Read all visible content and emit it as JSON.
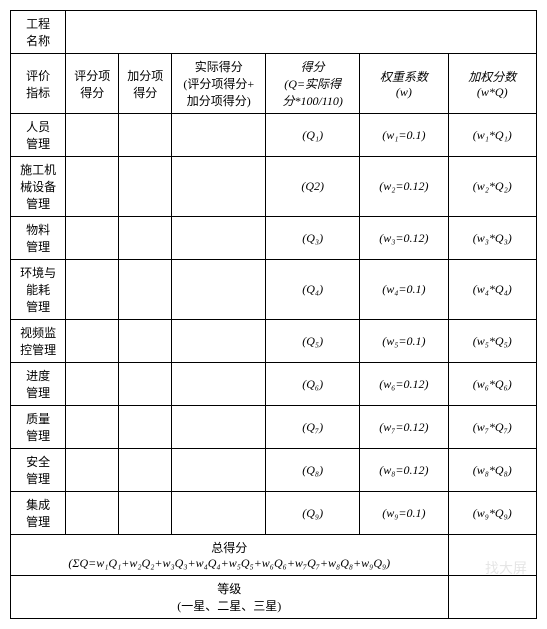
{
  "header": {
    "projectNameLabel": "工程\n名称",
    "evalIndexLabel": "评价\n指标",
    "scoreItemLabel": "评分项\n得分",
    "bonusItemLabel": "加分项\n得分",
    "actualScoreLabel": "实际得分\n(评分项得分+\n加分项得分)",
    "scoreLabel": "得分\n(Q=实际得\n分*100/110)",
    "weightLabel": "权重系数\n(w)",
    "weightedLabel": "加权分数\n(w*Q)"
  },
  "rows": [
    {
      "name": "人员\n管理",
      "q": "(Q₁)",
      "w": "(w₁=0.1)",
      "wq": "(w₁*Q₁)"
    },
    {
      "name": "施工机\n械设备\n管理",
      "q": "(Q2)",
      "w": "(w₂=0.12)",
      "wq": "(w₂*Q₂)"
    },
    {
      "name": "物料\n管理",
      "q": "(Q₃)",
      "w": "(w₃=0.12)",
      "wq": "(w₃*Q₃)"
    },
    {
      "name": "环境与\n能耗\n管理",
      "q": "(Q₄)",
      "w": "(w₄=0.1)",
      "wq": "(w₄*Q₄)"
    },
    {
      "name": "视频监\n控管理",
      "q": "(Q₅)",
      "w": "(w₅=0.1)",
      "wq": "(w₅*Q₅)"
    },
    {
      "name": "进度\n管理",
      "q": "(Q₆)",
      "w": "(w₆=0.12)",
      "wq": "(w₆*Q₆)"
    },
    {
      "name": "质量\n管理",
      "q": "(Q₇)",
      "w": "(w₇=0.12)",
      "wq": "(w₇*Q₇)"
    },
    {
      "name": "安全\n管理",
      "q": "(Q₈)",
      "w": "(w₈=0.12)",
      "wq": "(w₈*Q₈)"
    },
    {
      "name": "集成\n管理",
      "q": "(Q₉)",
      "w": "(w₉=0.1)",
      "wq": "(w₉*Q₉)"
    }
  ],
  "totalScore": {
    "label": "总得分",
    "formula": "(ΣQ=w₁Q₁+w₂Q₂+w₃Q₃+w₄Q₄+w₅Q₅+w₆Q₆+w₇Q₇+w₈Q₈+w₉Q₉)"
  },
  "grade": {
    "label": "等级",
    "options": "(一星、二星、三星)"
  },
  "watermark": "找大屏"
}
